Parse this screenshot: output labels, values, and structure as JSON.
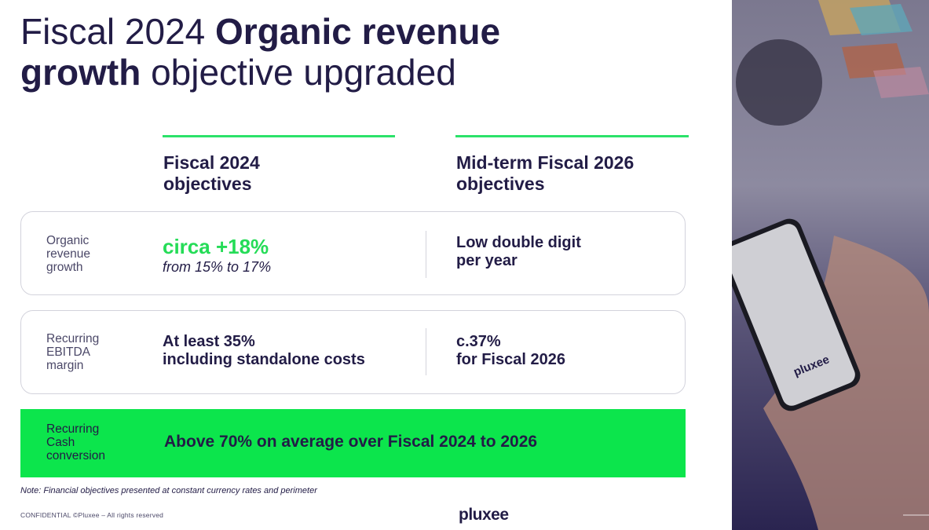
{
  "title": {
    "regular_1": "Fiscal 2024 ",
    "bold_1": "Organic revenue",
    "bold_2": "growth",
    "regular_2": " objective upgraded"
  },
  "columns": {
    "fy2024": {
      "line1": "Fiscal 2024",
      "line2": "objectives"
    },
    "midterm": {
      "line1": "Mid-term Fiscal 2026",
      "line2": "objectives"
    }
  },
  "rows": [
    {
      "label": [
        "Organic",
        "revenue",
        "growth"
      ],
      "fy2024_main": "circa +18%",
      "fy2024_sub": "from 15% to 17%",
      "midterm": [
        "Low double digit",
        "per year"
      ]
    },
    {
      "label": [
        "Recurring",
        "EBITDA",
        "margin"
      ],
      "fy2024": [
        "At least 35%",
        "including standalone costs"
      ],
      "midterm": [
        "c.37%",
        "for Fiscal 2026"
      ]
    }
  ],
  "band": {
    "label": [
      "Recurring",
      "Cash",
      "conversion"
    ],
    "text": "Above 70% on average over Fiscal 2024 to 2026"
  },
  "footer": {
    "note": "Note: Financial objectives presented at constant currency rates and perimeter",
    "confidential": "CONFIDENTIAL ©Pluxee – All rights reserved",
    "logo": "pluxee"
  },
  "photo": {
    "phone_logo": "pluxee"
  },
  "colors": {
    "navy": "#221c46",
    "green": "#0ce54c",
    "accent_green_text": "#25dc57",
    "rule": "#2be26a"
  }
}
